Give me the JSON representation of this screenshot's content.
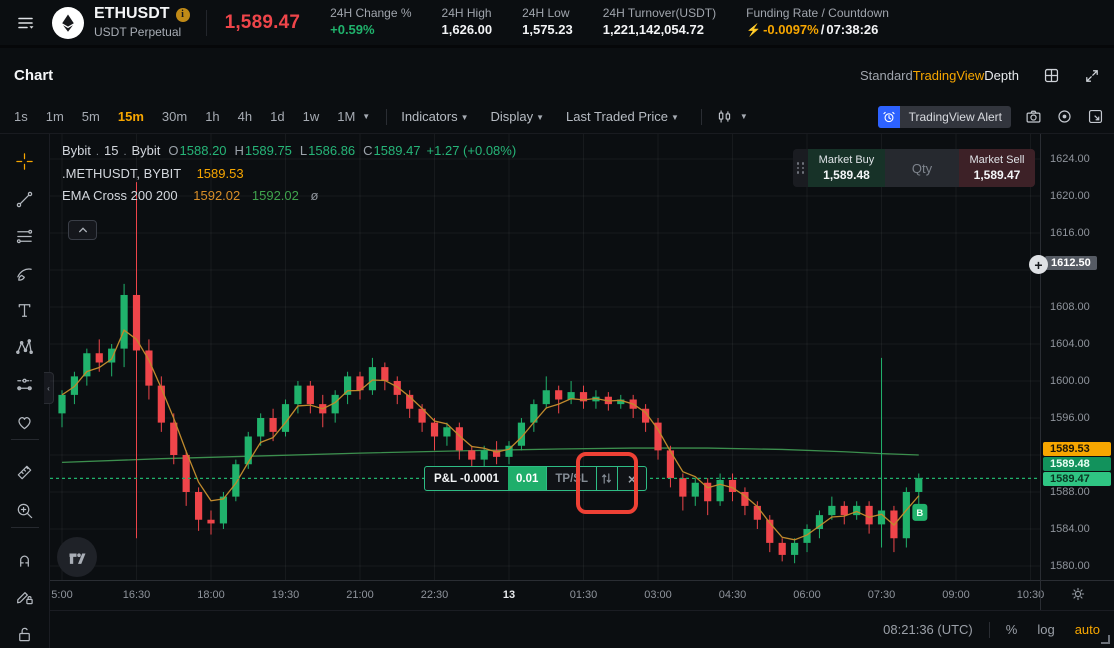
{
  "colors": {
    "accent": "#f7a600",
    "up": "#20b26c",
    "down": "#ef454a",
    "ema_fast": "#c08a2d",
    "ema_slow": "#3c8f4e",
    "grid": "rgba(255,255,255,0.05)",
    "position_line": "#20b26c",
    "annotation": "#ee4135",
    "alert_blue": "#2d62ff"
  },
  "topbar": {
    "menu_icon": "hamburger-menu-icon",
    "coin_icon": "eth-logo-icon",
    "symbol": "ETHUSDT",
    "info_icon": "info-icon",
    "symbol_type": "USDT Perpetual",
    "last_price": "1,589.47",
    "stats": {
      "change": {
        "label": "24H Change %",
        "value": "+0.59%"
      },
      "high": {
        "label": "24H High",
        "value": "1,626.00"
      },
      "low": {
        "label": "24H Low",
        "value": "1,575.23"
      },
      "turnover": {
        "label": "24H Turnover(USDT)",
        "value": "1,221,142,054.72"
      }
    },
    "funding": {
      "label": "Funding Rate / Countdown",
      "rate": "-0.0097%",
      "separator": " / ",
      "countdown": "07:38:26"
    }
  },
  "chart_header": {
    "title": "Chart",
    "modes": [
      {
        "label": "Standard",
        "state": "default"
      },
      {
        "label": "TradingView",
        "state": "active"
      },
      {
        "label": "Depth",
        "state": "light"
      }
    ],
    "icons": [
      "grid-layout-icon",
      "expand-icon"
    ]
  },
  "toolbar": {
    "timeframes": [
      "1s",
      "1m",
      "5m",
      "15m",
      "30m",
      "1h",
      "4h",
      "1d",
      "1w",
      "1M"
    ],
    "active_timeframe": "15m",
    "timeframe_caret": "▼",
    "menus": [
      "Indicators",
      "Display",
      "Last Traded Price"
    ],
    "candle_style_icon": "candle-style-icon",
    "alert": {
      "label": "TradingView Alert",
      "icon": "alarm-clock-icon"
    },
    "right_icons": [
      "camera-icon",
      "record-icon",
      "pip-icon"
    ]
  },
  "legend": {
    "title_parts": [
      "Bybit",
      "15",
      "Bybit"
    ],
    "ohlc": [
      {
        "k": "O",
        "v": "1588.20"
      },
      {
        "k": "H",
        "v": "1589.75"
      },
      {
        "k": "L",
        "v": "1586.86"
      },
      {
        "k": "C",
        "v": "1589.47"
      }
    ],
    "change": "+1.27 (+0.08%)",
    "line2": {
      "symbol": ".METHUSDT, BYBIT",
      "value": "1589.53"
    },
    "line3": {
      "name": "EMA Cross 200 200",
      "v1": "1592.02",
      "v2": "1592.02",
      "eye": "ø"
    }
  },
  "trade_widget": {
    "buy_label": "Market Buy",
    "buy_price": "1,589.48",
    "qty_label": "Qty",
    "sell_label": "Market Sell",
    "sell_price": "1,589.47"
  },
  "pnl_widget": {
    "pnl": "P&L -0.0001",
    "qty": "0.01",
    "tpsl": "TP/SL",
    "reverse_icon": "reverse-position-icon",
    "close": "×"
  },
  "left_tools": [
    "crosshair",
    "trend-line",
    "horizontal-lines",
    "brush",
    "text",
    "xabcd-pattern",
    "forecast",
    "favorites-heart",
    "ruler",
    "zoom-in",
    "magnet",
    "draw-lock",
    "lock-all"
  ],
  "price_axis": {
    "ticks": [
      "1624.00",
      "1620.00",
      "1616.00",
      "1608.00",
      "1604.00",
      "1600.00",
      "1596.00",
      "1588.00",
      "1584.00",
      "1580.00"
    ],
    "special_tick": "1612.50",
    "chips": [
      {
        "text": "1589.53",
        "type": "index"
      },
      {
        "text": "1589.48",
        "type": "entry"
      },
      {
        "text": "1589.47",
        "type": "last"
      }
    ]
  },
  "time_axis": {
    "labels": [
      "5:00",
      "16:30",
      "18:00",
      "19:30",
      "21:00",
      "22:30",
      "13",
      "01:30",
      "03:00",
      "04:30",
      "06:00",
      "07:30",
      "09:00",
      "10:30"
    ],
    "bold_label": "13"
  },
  "bottom_bar": {
    "clock": "08:21:36 (UTC)",
    "percent": "%",
    "log": "log",
    "scale": "auto"
  },
  "chart_data": {
    "type": "candlestick",
    "symbol": "ETHUSDT",
    "exchange": "Bybit",
    "interval_minutes": 15,
    "visible_price_range": [
      1578,
      1626
    ],
    "current_ohlc": {
      "open": 1588.2,
      "high": 1589.75,
      "low": 1586.86,
      "close": 1589.47,
      "change": "+1.27 (+0.08%)"
    },
    "position_line_price": 1589.47,
    "entry_price": 1589.48,
    "index_price": 1589.53,
    "alert_hover_price": 1612.5,
    "ema_values": {
      "fast": 1592.02,
      "slow": 1592.02
    },
    "buy_marker": {
      "candle_index": 68,
      "price": 1586.5,
      "label": "B"
    },
    "candles": [
      [
        1596.5,
        1599.0,
        1595.0,
        1598.5
      ],
      [
        1598.5,
        1601.0,
        1597.5,
        1600.5
      ],
      [
        1600.5,
        1603.5,
        1599.5,
        1603.0
      ],
      [
        1603.0,
        1604.5,
        1601.0,
        1602.0
      ],
      [
        1602.0,
        1604.0,
        1600.5,
        1603.5
      ],
      [
        1603.5,
        1610.5,
        1601.5,
        1609.3
      ],
      [
        1609.3,
        1621.5,
        1583.0,
        1603.3
      ],
      [
        1603.3,
        1604.5,
        1598.0,
        1599.5
      ],
      [
        1599.5,
        1600.5,
        1594.5,
        1595.5
      ],
      [
        1595.5,
        1596.5,
        1591.0,
        1592.0
      ],
      [
        1592.0,
        1592.5,
        1586.5,
        1588.0
      ],
      [
        1588.0,
        1588.5,
        1583.8,
        1585.0
      ],
      [
        1585.0,
        1586.0,
        1583.4,
        1584.6
      ],
      [
        1584.6,
        1588.0,
        1584.0,
        1587.5
      ],
      [
        1587.5,
        1591.5,
        1587.0,
        1591.0
      ],
      [
        1591.0,
        1594.5,
        1590.5,
        1594.0
      ],
      [
        1594.0,
        1596.5,
        1593.0,
        1596.0
      ],
      [
        1596.0,
        1597.0,
        1593.5,
        1594.5
      ],
      [
        1594.5,
        1598.0,
        1594.0,
        1597.5
      ],
      [
        1597.5,
        1600.0,
        1596.5,
        1599.5
      ],
      [
        1599.5,
        1600.0,
        1596.5,
        1597.5
      ],
      [
        1597.5,
        1598.5,
        1595.0,
        1596.5
      ],
      [
        1596.5,
        1599.0,
        1595.5,
        1598.5
      ],
      [
        1598.5,
        1601.0,
        1597.5,
        1600.5
      ],
      [
        1600.5,
        1601.0,
        1598.0,
        1599.0
      ],
      [
        1599.0,
        1602.5,
        1598.5,
        1601.5
      ],
      [
        1601.5,
        1602.0,
        1599.0,
        1600.0
      ],
      [
        1600.0,
        1600.5,
        1597.5,
        1598.5
      ],
      [
        1598.5,
        1599.0,
        1596.0,
        1597.0
      ],
      [
        1597.0,
        1597.5,
        1594.5,
        1595.5
      ],
      [
        1595.5,
        1596.0,
        1592.5,
        1594.0
      ],
      [
        1594.0,
        1595.5,
        1593.0,
        1595.0
      ],
      [
        1595.0,
        1595.5,
        1591.5,
        1592.5
      ],
      [
        1592.5,
        1593.0,
        1590.0,
        1591.5
      ],
      [
        1591.5,
        1593.0,
        1590.5,
        1592.5
      ],
      [
        1592.5,
        1593.5,
        1591.0,
        1591.8
      ],
      [
        1591.8,
        1593.5,
        1591.0,
        1593.0
      ],
      [
        1593.0,
        1596.0,
        1592.5,
        1595.5
      ],
      [
        1595.5,
        1598.0,
        1594.5,
        1597.5
      ],
      [
        1597.5,
        1600.5,
        1597.0,
        1599.0
      ],
      [
        1599.0,
        1599.5,
        1596.5,
        1598.0
      ],
      [
        1598.0,
        1600.0,
        1597.5,
        1598.8
      ],
      [
        1598.8,
        1599.5,
        1597.0,
        1597.8
      ],
      [
        1597.8,
        1599.0,
        1597.0,
        1598.3
      ],
      [
        1598.3,
        1598.8,
        1596.8,
        1597.5
      ],
      [
        1597.5,
        1598.5,
        1597.0,
        1598.0
      ],
      [
        1598.0,
        1598.5,
        1596.0,
        1597.0
      ],
      [
        1597.0,
        1597.5,
        1594.5,
        1595.5
      ],
      [
        1595.5,
        1596.0,
        1591.5,
        1592.5
      ],
      [
        1592.5,
        1593.0,
        1588.5,
        1589.5
      ],
      [
        1589.5,
        1590.0,
        1586.0,
        1587.5
      ],
      [
        1587.5,
        1589.5,
        1586.5,
        1589.0
      ],
      [
        1589.0,
        1589.5,
        1585.5,
        1587.0
      ],
      [
        1587.0,
        1590.0,
        1586.5,
        1589.3
      ],
      [
        1589.3,
        1590.0,
        1587.0,
        1588.0
      ],
      [
        1588.0,
        1588.5,
        1585.5,
        1586.5
      ],
      [
        1586.5,
        1587.0,
        1584.0,
        1585.0
      ],
      [
        1585.0,
        1585.5,
        1581.5,
        1582.5
      ],
      [
        1582.5,
        1583.0,
        1580.5,
        1581.2
      ],
      [
        1581.2,
        1583.0,
        1580.3,
        1582.5
      ],
      [
        1582.5,
        1584.5,
        1581.5,
        1584.0
      ],
      [
        1584.0,
        1586.0,
        1583.0,
        1585.5
      ],
      [
        1585.5,
        1587.5,
        1585.0,
        1586.5
      ],
      [
        1586.5,
        1587.0,
        1584.5,
        1585.5
      ],
      [
        1585.5,
        1587.0,
        1585.0,
        1586.5
      ],
      [
        1586.5,
        1587.0,
        1583.5,
        1584.5
      ],
      [
        1584.5,
        1602.5,
        1582.0,
        1586.0
      ],
      [
        1586.0,
        1586.5,
        1581.5,
        1583.0
      ],
      [
        1583.0,
        1588.5,
        1582.0,
        1588.0
      ],
      [
        1588.0,
        1590.0,
        1586.5,
        1589.5
      ]
    ],
    "ema_slow_points": [
      [
        0,
        1591.2
      ],
      [
        8,
        1591.6
      ],
      [
        16,
        1591.9
      ],
      [
        24,
        1592.2
      ],
      [
        32,
        1592.45
      ],
      [
        40,
        1592.65
      ],
      [
        46,
        1592.75
      ],
      [
        52,
        1592.75
      ],
      [
        58,
        1592.6
      ],
      [
        63,
        1592.35
      ],
      [
        66,
        1592.15
      ],
      [
        69,
        1592.0
      ]
    ]
  }
}
